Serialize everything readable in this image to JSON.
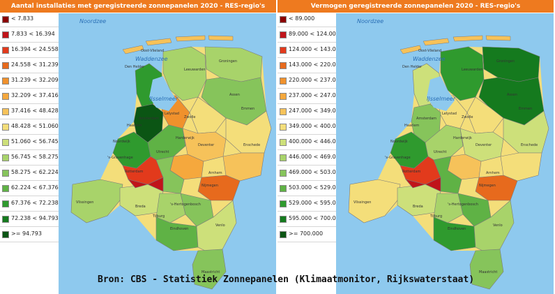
{
  "left_panel": {
    "title": "Aantal installaties met geregistreerde zonnepanelen 2020 - RES-regio's",
    "legend": [
      {
        "label": "< 7.833",
        "color": "#8b0000"
      },
      {
        "label": "7.833 < 16.394",
        "color": "#c0141a"
      },
      {
        "label": "16.394 < 24.558",
        "color": "#e23a1c"
      },
      {
        "label": "24.558 < 31.239",
        "color": "#e76a1d"
      },
      {
        "label": "31.239 < 32.209",
        "color": "#f0912c"
      },
      {
        "label": "32.209 < 37.416",
        "color": "#f5a83d"
      },
      {
        "label": "37.416 < 48.428",
        "color": "#f6c25a"
      },
      {
        "label": "48.428 < 51.060",
        "color": "#f4de7a"
      },
      {
        "label": "51.060 < 56.745",
        "color": "#cde07a"
      },
      {
        "label": "56.745 < 58.275",
        "color": "#a8d36a"
      },
      {
        "label": "58.275 < 62.224",
        "color": "#86c45b"
      },
      {
        "label": "62.224 < 67.376",
        "color": "#5fb245"
      },
      {
        "label": "67.376 < 72.238",
        "color": "#2f9a2e"
      },
      {
        "label": "72.238 < 94.793",
        "color": "#157a1e"
      },
      {
        "label": ">= 94.793",
        "color": "#0b5514"
      }
    ],
    "map_labels": [
      "Noordzee",
      "Waddenzee",
      "IJsselmeer",
      "Oost-Vlieland",
      "Den Helder",
      "Amsterdam",
      "Lelystad",
      "Zwolle",
      "Groningen",
      "Leeuwarden",
      "'s-Gravenhage",
      "Rotterdam",
      "Utrecht",
      "Nijmegen",
      "Eindhoven",
      "Maastricht",
      "Arnhem",
      "Enschede",
      "Assen",
      "Vlissingen",
      "Noordwijk",
      "Haarlem",
      "Harderwijk",
      "Deventer",
      "'s-Hertogenbosch",
      "Tilburg",
      "Venlo",
      "Breda",
      "Emmen"
    ]
  },
  "right_panel": {
    "title": "Vermogen geregistreerde zonnepanelen 2020 - RES-regio's",
    "legend": [
      {
        "label": "< 89.000",
        "color": "#8b0000"
      },
      {
        "label": "89.000 < 124.000",
        "color": "#c0141a"
      },
      {
        "label": "124.000 < 143.000",
        "color": "#e23a1c"
      },
      {
        "label": "143.000 < 220.000",
        "color": "#e76a1d"
      },
      {
        "label": "220.000 < 237.000",
        "color": "#f0912c"
      },
      {
        "label": "237.000 < 247.000",
        "color": "#f5a83d"
      },
      {
        "label": "247.000 < 349.000",
        "color": "#f6c25a"
      },
      {
        "label": "349.000 < 400.000",
        "color": "#f4de7a"
      },
      {
        "label": "400.000 < 446.000",
        "color": "#cde07a"
      },
      {
        "label": "446.000 < 469.000",
        "color": "#a8d36a"
      },
      {
        "label": "469.000 < 503.000",
        "color": "#86c45b"
      },
      {
        "label": "503.000 < 529.000",
        "color": "#5fb245"
      },
      {
        "label": "529.000 < 595.000",
        "color": "#2f9a2e"
      },
      {
        "label": "595.000 < 700.000",
        "color": "#157a1e"
      },
      {
        "label": ">= 700.000",
        "color": "#0b5514"
      }
    ],
    "map_labels": [
      "Noordzee",
      "Waddenzee",
      "IJsselmeer",
      "Oost-Vlieland",
      "Den Helder",
      "Amsterdam",
      "Lelystad",
      "Zwolle",
      "Groningen",
      "Leeuwarden",
      "'s-Gravenhage",
      "Rotterdam",
      "Utrecht",
      "Nijmegen",
      "Eindhoven",
      "Maastricht",
      "Arnhem",
      "Enschede",
      "Assen",
      "Vlissingen",
      "Noordwijk",
      "Haarlem",
      "Harderwijk",
      "Deventer",
      "'s-Hertogenbosch",
      "Tilburg",
      "Venlo",
      "Breda",
      "Emmen"
    ]
  },
  "source_text": "Bron: CBS - Statistiek Zonnepanelen (Klimaatmonitor, Rijkswaterstaat)",
  "colors": {
    "header": "#ee7a1f",
    "water": "#8ec9ee",
    "sea_label": "#2a6fb5"
  }
}
